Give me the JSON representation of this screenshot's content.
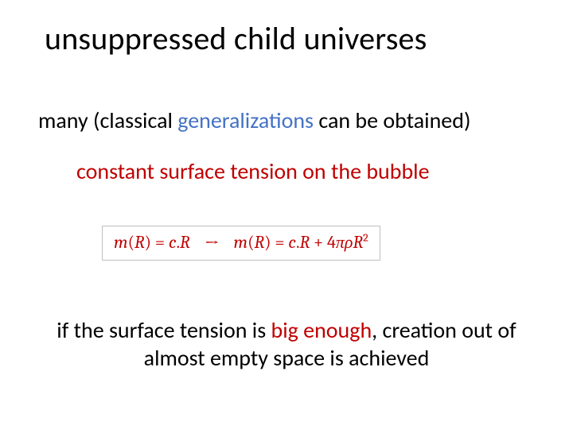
{
  "slide": {
    "background_color": "#ffffff",
    "title": {
      "text": "unsuppressed child universes",
      "font_size": 40,
      "color": "#000000"
    },
    "line1": {
      "prefix": "many (classical ",
      "highlight": "generalizations",
      "suffix": " can be obtained)",
      "font_size": 28,
      "highlight_color": "#4472c4",
      "text_color": "#000000"
    },
    "line2": {
      "text": "constant surface tension on the bubble",
      "color": "#c00000",
      "font_size": 28
    },
    "formula": {
      "border_color": "#bfbfbf",
      "text_color": "#c00000",
      "font_size": 22,
      "lhs": {
        "m": "m",
        "open": "(",
        "R": "R",
        "close": ")",
        "eq": " = ",
        "c": "c",
        "dot": ".",
        "R2": "R"
      },
      "arrow": "→",
      "rhs": {
        "m": "m",
        "open": "(",
        "R": "R",
        "close": ")",
        "eq": " = ",
        "c": "c",
        "dot": ".",
        "R2": "R",
        "plus": " + 4",
        "pi": "π",
        "rho": "ρ",
        "R3": "R",
        "sup": "2"
      }
    },
    "line3": {
      "prefix": "if the surface tension is ",
      "highlight": "big enough",
      "suffix1": ", creation out of",
      "suffix2": "almost empty space is achieved",
      "font_size": 28,
      "highlight_color": "#c00000",
      "text_color": "#000000"
    }
  }
}
